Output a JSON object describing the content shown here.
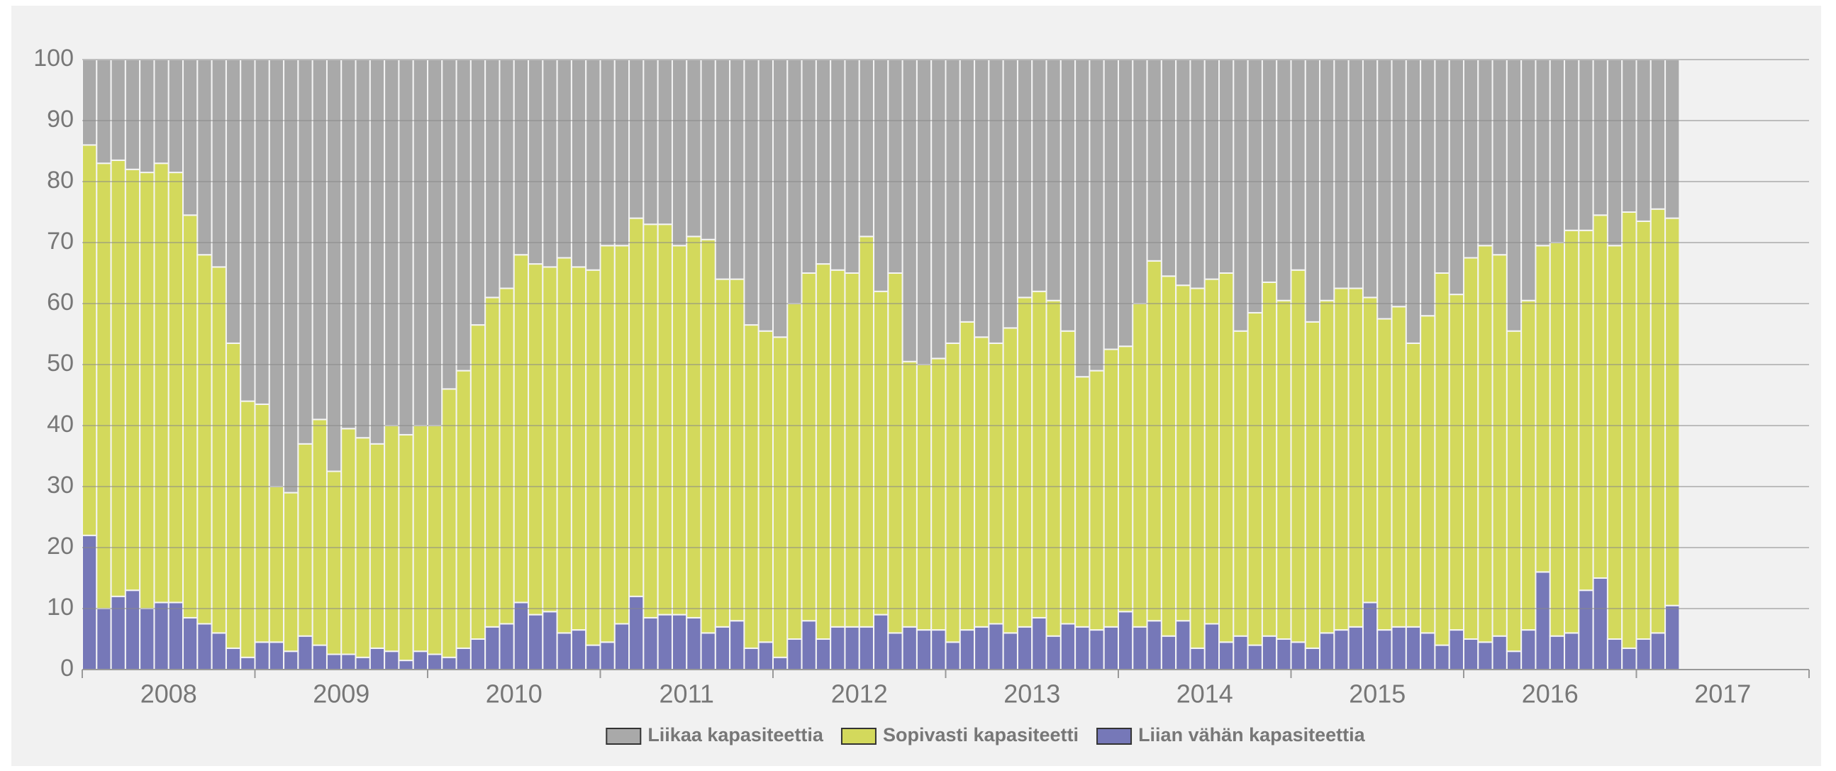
{
  "chart_data": {
    "type": "stacked_bar",
    "year_labels": [
      "2008",
      "2009",
      "2010",
      "2011",
      "2012",
      "2013",
      "2014",
      "2015",
      "2016",
      "2017"
    ],
    "categories": [
      null,
      null,
      null,
      null,
      null,
      null,
      null,
      null,
      null,
      null,
      null,
      null,
      null,
      null,
      null,
      null,
      null,
      null,
      null,
      null,
      null,
      null,
      null,
      null,
      null,
      null,
      null,
      null,
      null,
      null,
      null,
      null,
      null,
      null,
      null,
      null,
      null,
      null,
      null,
      null,
      null,
      null,
      null,
      null,
      null,
      null,
      null,
      null,
      null,
      null,
      null,
      null,
      null,
      null,
      null,
      null,
      null,
      null,
      null,
      null,
      null,
      null,
      null,
      null,
      null,
      null,
      null,
      null,
      null,
      null,
      null,
      null,
      null,
      null,
      null,
      null,
      null,
      null,
      null,
      null,
      null,
      null,
      null,
      null,
      null,
      null,
      null,
      null,
      null,
      null,
      null,
      null,
      null,
      null,
      null,
      null,
      null,
      null,
      null,
      null,
      null,
      null,
      null,
      null,
      null,
      null,
      null,
      null,
      null,
      null,
      null
    ],
    "series": [
      {
        "name": "Liikaa kapasiteettia",
        "color": "#a9a9a9",
        "values": [
          14,
          17,
          16.5,
          18,
          18.5,
          17,
          18.5,
          25.5,
          32,
          34,
          46.5,
          56,
          56.5,
          70,
          71,
          63,
          59,
          67.5,
          60.5,
          62,
          63,
          60,
          61.5,
          60,
          60,
          54,
          51,
          43.5,
          39,
          37.5,
          32,
          33.5,
          34,
          32.5,
          34,
          34.5,
          30.5,
          30.5,
          26,
          27,
          27,
          30.5,
          29,
          29.5,
          36,
          36,
          43.5,
          44.5,
          45.5,
          40,
          35,
          33.5,
          34.5,
          35,
          29,
          38,
          35,
          49.5,
          50,
          49,
          46.5,
          43,
          45.5,
          46.5,
          44,
          39,
          38,
          39.5,
          44.5,
          52,
          51,
          47.5,
          47,
          40,
          33,
          35.5,
          37,
          37.5,
          36,
          35,
          44.5,
          41.5,
          36.5,
          39.5,
          34.5,
          43,
          39.5,
          37.5,
          37.5,
          39,
          42.5,
          40.5,
          46.5,
          42,
          35,
          38.5,
          32.5,
          30.5,
          32,
          44.5,
          39.5,
          30.5,
          30,
          28,
          28,
          25.5,
          30.5,
          25,
          26.5,
          24.5,
          26
        ]
      },
      {
        "name": "Sopivasti kapasiteetti",
        "color": "#d3d95c",
        "values": [
          64,
          73,
          71.5,
          69,
          71.5,
          72,
          70.5,
          66,
          60.5,
          60,
          50,
          42,
          39,
          25.5,
          26,
          31.5,
          37,
          30,
          37,
          36,
          33.5,
          37,
          37,
          37,
          37.5,
          44,
          45.5,
          51.5,
          54,
          55,
          57,
          57.5,
          56.5,
          61.5,
          59.5,
          61.5,
          65,
          62,
          62,
          64.5,
          64,
          60.5,
          62.5,
          64.5,
          57,
          56,
          53,
          51,
          52.5,
          55,
          57,
          61.5,
          58.5,
          58,
          64,
          53,
          59,
          43.5,
          43.5,
          44.5,
          49,
          50.5,
          47.5,
          46,
          50,
          54,
          53.5,
          55,
          48,
          41,
          42.5,
          45.5,
          43.5,
          53,
          59,
          59,
          55,
          59,
          56.5,
          60.5,
          50,
          54.5,
          58,
          55.5,
          61,
          53.5,
          54.5,
          56,
          55.5,
          50,
          51,
          52.5,
          46.5,
          52,
          61,
          55,
          62.5,
          65,
          62.5,
          52.5,
          54,
          53.5,
          64.5,
          66,
          59,
          59.5,
          64.5,
          71.5,
          68.5,
          69.5,
          63.5
        ]
      },
      {
        "name": "Liian vähän kapasiteettia",
        "color": "#7678b8",
        "values": [
          22,
          10,
          12,
          13,
          10,
          11,
          11,
          8.5,
          7.5,
          6,
          3.5,
          2,
          4.5,
          4.5,
          3,
          5.5,
          4,
          2.5,
          2.5,
          2,
          3.5,
          3,
          1.5,
          3,
          2.5,
          2,
          3.5,
          5,
          7,
          7.5,
          11,
          9,
          9.5,
          6,
          6.5,
          4,
          4.5,
          7.5,
          12,
          8.5,
          9,
          9,
          8.5,
          6,
          7,
          8,
          3.5,
          4.5,
          2,
          5,
          8,
          5,
          7,
          7,
          7,
          9,
          6,
          7,
          6.5,
          6.5,
          4.5,
          6.5,
          7,
          7.5,
          6,
          7,
          8.5,
          5.5,
          7.5,
          7,
          6.5,
          7,
          9.5,
          7,
          8,
          5.5,
          8,
          3.5,
          7.5,
          4.5,
          5.5,
          4,
          5.5,
          5,
          4.5,
          3.5,
          6,
          6.5,
          7,
          11,
          6.5,
          7,
          7,
          6,
          4,
          6.5,
          5,
          4.5,
          5.5,
          3,
          6.5,
          16,
          5.5,
          6,
          13,
          15,
          5,
          3.5,
          5,
          6,
          10.5
        ]
      }
    ],
    "ylim": [
      0,
      100
    ],
    "yticks": [
      0,
      10,
      20,
      30,
      40,
      50,
      60,
      70,
      80,
      90,
      100
    ],
    "grid": true,
    "legend": "bottom"
  }
}
